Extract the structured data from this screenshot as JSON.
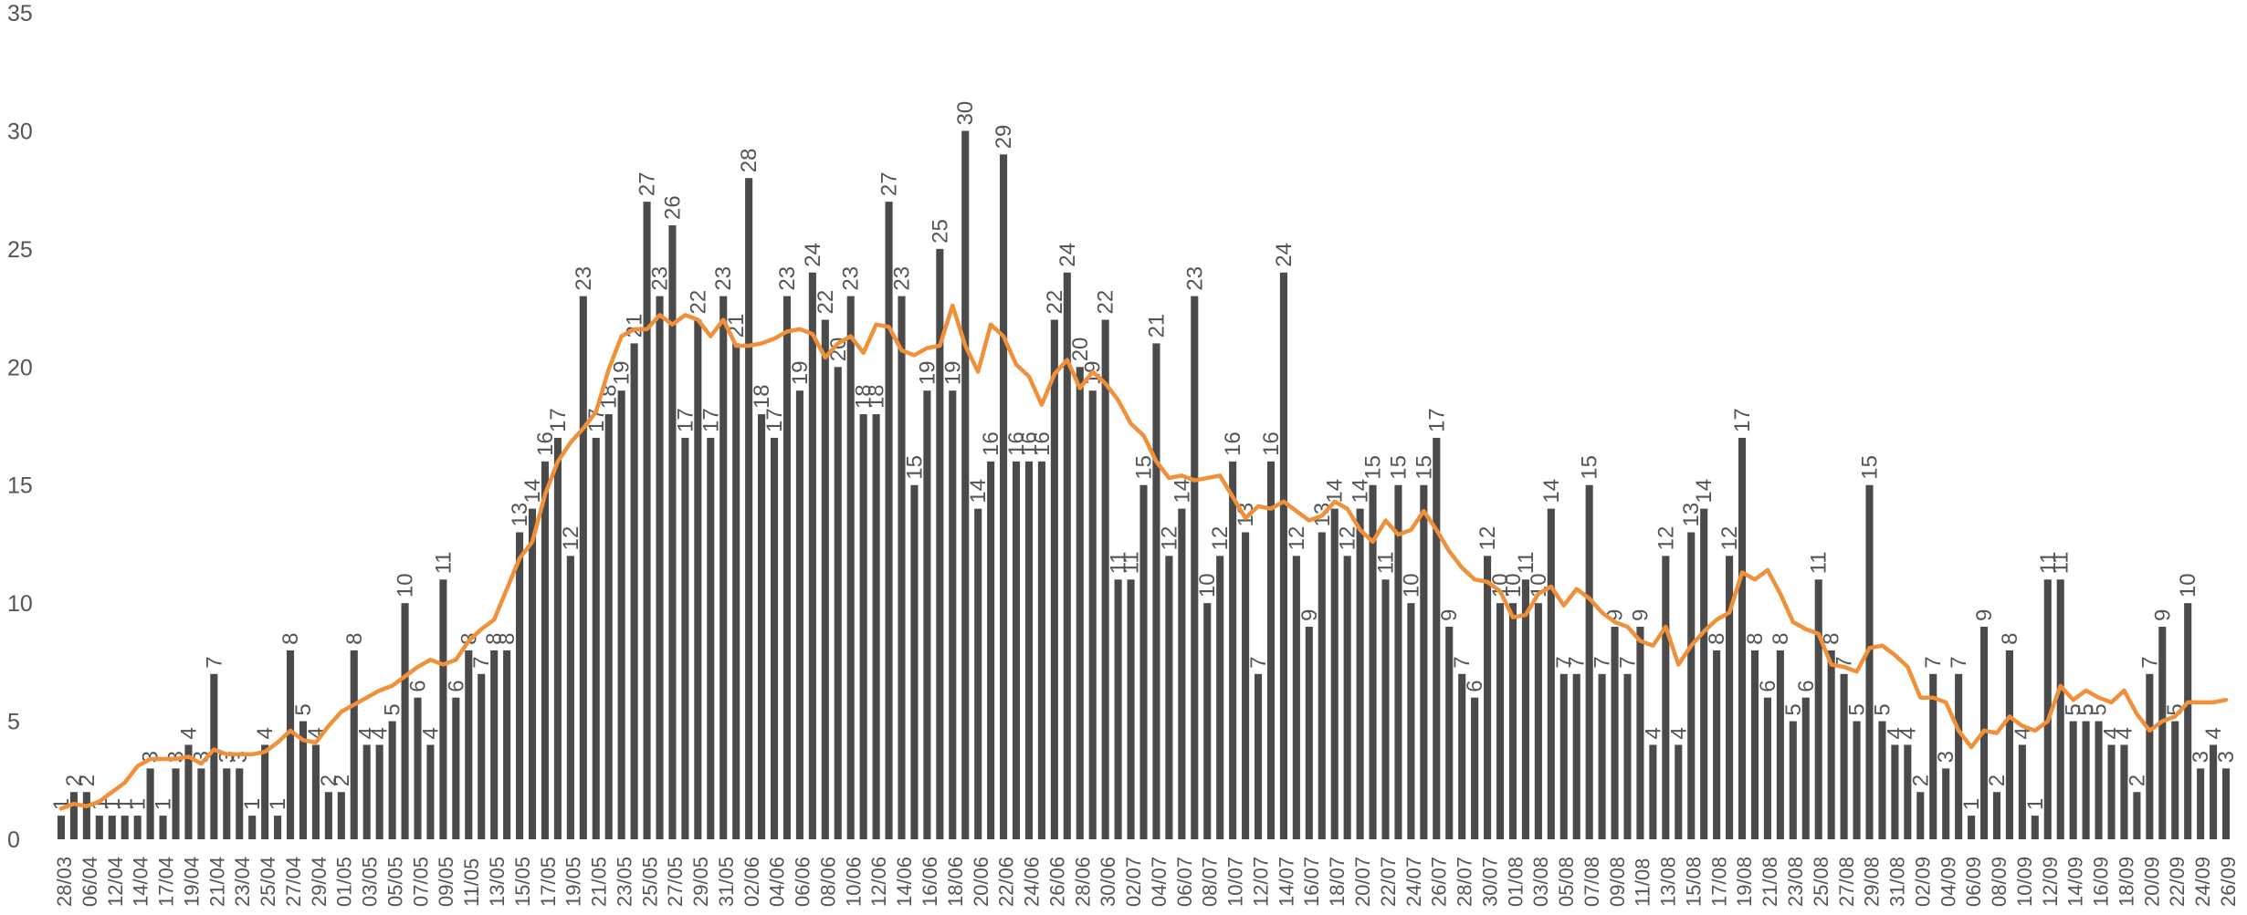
{
  "chart_data": {
    "type": "bar",
    "title": "",
    "xlabel": "",
    "ylabel": "",
    "ylim": [
      0,
      35
    ],
    "yticks": [
      0,
      5,
      10,
      15,
      20,
      25,
      30,
      35
    ],
    "grid": false,
    "legend": "none",
    "colors": {
      "bars": "#4a4a4a",
      "line": "#f0903a",
      "text": "#555555"
    },
    "x_tick_labels": [
      "28/03",
      "06/04",
      "12/04",
      "14/04",
      "17/04",
      "19/04",
      "21/04",
      "23/04",
      "25/04",
      "27/04",
      "29/04",
      "01/05",
      "03/05",
      "05/05",
      "07/05",
      "09/05",
      "11/05",
      "13/05",
      "15/05",
      "17/05",
      "19/05",
      "21/05",
      "23/05",
      "25/05",
      "27/05",
      "29/05",
      "31/05",
      "02/06",
      "04/06",
      "06/06",
      "08/06",
      "10/06",
      "12/06",
      "14/06",
      "16/06",
      "18/06",
      "20/06",
      "22/06",
      "24/06",
      "26/06",
      "28/06",
      "30/06",
      "02/07",
      "04/07",
      "06/07",
      "08/07",
      "10/07",
      "12/07",
      "14/07",
      "16/07",
      "18/07",
      "20/07",
      "22/07",
      "24/07",
      "26/07",
      "28/07",
      "30/07",
      "01/08",
      "03/08",
      "05/08",
      "07/08",
      "09/08",
      "11/08",
      "13/08",
      "15/08",
      "17/08",
      "19/08",
      "21/08",
      "23/08",
      "25/08",
      "27/08",
      "29/08",
      "31/08",
      "02/09",
      "04/09",
      "06/09",
      "08/09",
      "10/09",
      "12/09",
      "14/09",
      "16/09",
      "18/09",
      "20/09",
      "22/09",
      "24/09",
      "26/09"
    ],
    "series": [
      {
        "values": [
          1,
          2,
          2,
          1,
          1,
          1,
          1,
          3,
          1,
          3,
          4,
          3,
          7,
          3,
          3,
          1,
          4,
          1,
          8,
          5,
          4,
          2,
          2,
          8,
          4,
          4,
          5,
          10,
          6,
          4,
          11,
          6,
          8,
          7,
          8,
          8,
          13,
          14,
          16,
          17,
          12,
          23,
          17,
          18,
          19,
          21,
          27,
          23,
          26,
          17,
          22,
          17,
          23,
          21,
          28,
          18,
          17,
          23,
          19,
          24,
          22,
          20,
          23,
          18,
          18,
          27,
          23,
          15,
          19,
          25,
          19,
          30,
          14,
          16,
          29,
          16,
          16,
          16,
          22,
          24,
          20,
          19,
          22,
          11,
          11,
          15,
          21,
          12,
          14,
          23,
          10,
          12,
          16,
          13,
          7,
          16,
          24,
          12,
          9,
          13,
          14,
          12,
          14,
          15,
          11,
          15,
          10,
          15,
          17,
          9,
          7,
          6,
          12,
          10,
          10,
          11,
          10,
          14,
          7,
          7,
          15,
          7,
          9,
          7,
          9,
          4,
          12,
          4,
          13,
          14,
          8,
          12,
          17,
          8,
          6,
          8,
          5,
          6,
          11,
          8,
          7,
          5,
          15,
          5,
          4,
          4,
          2,
          7,
          3,
          7,
          1,
          9,
          2,
          8,
          4,
          1,
          11,
          11,
          5,
          5,
          5,
          4,
          4,
          2,
          7,
          9,
          5,
          10,
          3,
          4,
          3
        ]
      },
      {
        "values": [
          1.3,
          1.5,
          1.4,
          1.6,
          2.0,
          2.4,
          3.1,
          3.4,
          3.4,
          3.4,
          3.5,
          3.2,
          3.8,
          3.6,
          3.6,
          3.6,
          3.7,
          4.1,
          4.6,
          4.2,
          4.1,
          4.8,
          5.4,
          5.7,
          6.0,
          6.3,
          6.5,
          6.9,
          7.3,
          7.6,
          7.4,
          7.6,
          8.4,
          8.9,
          9.3,
          10.6,
          11.9,
          12.6,
          14.6,
          16.0,
          16.8,
          17.4,
          18.1,
          19.9,
          21.3,
          21.6,
          21.6,
          22.2,
          21.8,
          22.2,
          22.0,
          21.3,
          22.0,
          20.9,
          20.9,
          21.0,
          21.2,
          21.5,
          21.6,
          21.4,
          20.4,
          21.0,
          21.3,
          20.6,
          21.8,
          21.7,
          20.7,
          20.5,
          20.8,
          20.9,
          22.6,
          20.9,
          19.8,
          21.8,
          21.3,
          20.1,
          19.6,
          18.4,
          19.7,
          20.3,
          19.1,
          19.8,
          19.3,
          18.6,
          17.6,
          17.1,
          16.0,
          15.3,
          15.4,
          15.2,
          15.3,
          15.4,
          14.5,
          13.6,
          14.1,
          14.0,
          14.3,
          13.9,
          13.5,
          13.7,
          14.3,
          14.0,
          13.1,
          12.6,
          13.5,
          12.9,
          13.1,
          13.9,
          13.1,
          12.2,
          11.5,
          11.0,
          10.9,
          10.5,
          9.4,
          9.5,
          10.4,
          10.7,
          9.9,
          10.6,
          10.2,
          9.6,
          9.2,
          9.0,
          8.4,
          8.2,
          9.0,
          7.4,
          8.2,
          8.8,
          9.3,
          9.6,
          11.3,
          11.0,
          11.4,
          10.4,
          9.2,
          8.9,
          8.7,
          7.4,
          7.3,
          7.1,
          8.1,
          8.2,
          7.8,
          7.3,
          6.0,
          6.0,
          5.8,
          4.6,
          3.9,
          4.6,
          4.5,
          5.2,
          4.8,
          4.6,
          5.0,
          6.5,
          5.9,
          6.3,
          6.0,
          5.8,
          6.3,
          5.3,
          4.6,
          5.0,
          5.2,
          5.8,
          5.8,
          5.8,
          5.9
        ]
      }
    ]
  }
}
